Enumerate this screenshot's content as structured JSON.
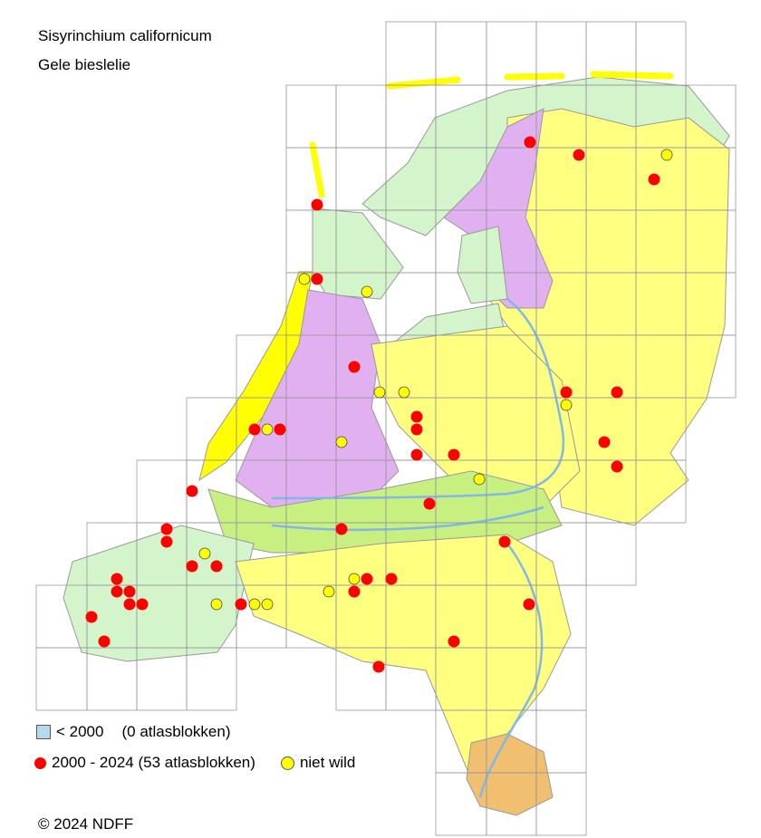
{
  "title": {
    "scientific_name": "Sisyrinchium californicum",
    "common_name": "Gele bieslelie"
  },
  "legend": {
    "before_2000": {
      "label": "< 2000",
      "count_text": "(0 atlasblokken)",
      "color": "#b9d8ea"
    },
    "period_2000_2024": {
      "label": "2000 - 2024 (53 atlasblokken)",
      "color": "#ff0000"
    },
    "not_wild": {
      "label": "niet wild",
      "color": "#ffff00"
    }
  },
  "copyright": "© 2024 NDFF",
  "map_colors": {
    "sea_clay": "#d4f5cc",
    "sand": "#ffff80",
    "peat": "#e0b0f0",
    "river_clay": "#c8f080",
    "loess": "#f0c070",
    "dunes": "#ffff00",
    "rivers": "#80b8e8"
  }
}
